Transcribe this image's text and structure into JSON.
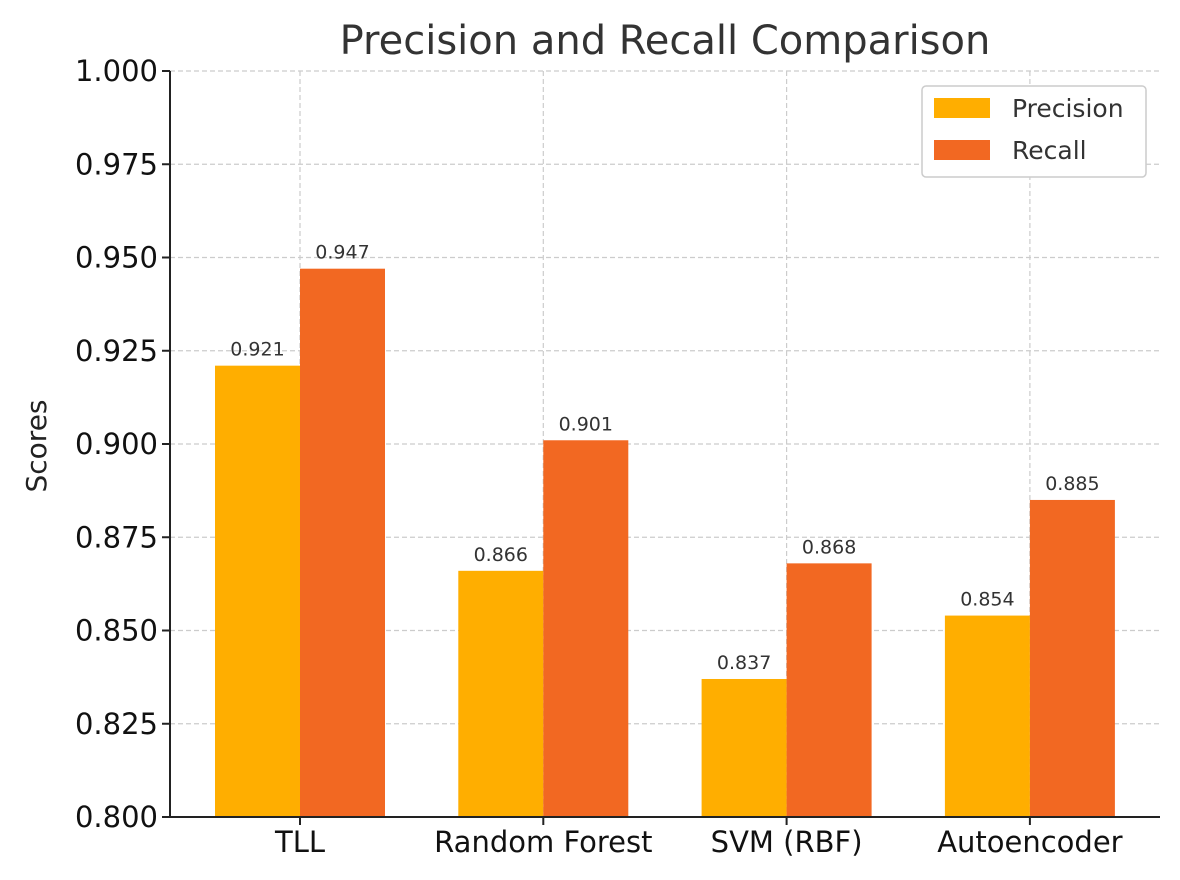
{
  "chart_data": {
    "type": "bar",
    "title": "Precision and Recall Comparison",
    "xlabel": "",
    "ylabel": "Scores",
    "categories": [
      "TLL",
      "Random Forest",
      "SVM (RBF)",
      "Autoencoder"
    ],
    "series": [
      {
        "name": "Precision",
        "color": "#FFAE00",
        "values": [
          0.921,
          0.866,
          0.837,
          0.854
        ],
        "labels": [
          "0.921",
          "0.866",
          "0.837",
          "0.854"
        ]
      },
      {
        "name": "Recall",
        "color": "#F26822",
        "values": [
          0.947,
          0.901,
          0.868,
          0.885
        ],
        "labels": [
          "0.947",
          "0.901",
          "0.868",
          "0.885"
        ]
      }
    ],
    "ylim": [
      0.8,
      1.0
    ],
    "yticks": [
      "0.800",
      "0.825",
      "0.850",
      "0.875",
      "0.900",
      "0.925",
      "0.950",
      "0.975",
      "1.000"
    ],
    "grid": true,
    "legend_position": "top-right"
  }
}
